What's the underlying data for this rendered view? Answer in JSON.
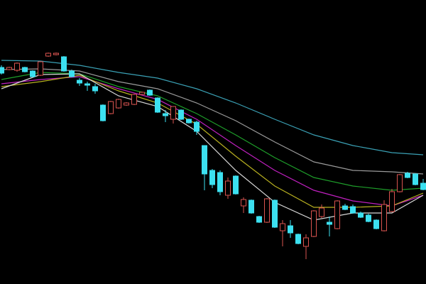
{
  "chart_data": {
    "type": "candlestick",
    "ylim": [
      0,
      100
    ],
    "up_color": "#d9534f",
    "down_color": "#3ce0f0",
    "open": [
      76.25,
      75.5,
      75.25,
      76.25,
      75,
      73.5,
      80.25,
      80.75,
      80,
      75,
      71.75,
      70.5,
      69.5,
      63,
      60,
      62,
      63,
      63.25,
      66.75,
      68.25,
      65.5,
      60,
      58,
      61.25,
      58,
      57,
      48.75,
      40,
      39.25,
      31.25,
      38,
      27.5,
      29.5,
      23.75,
      21.75,
      29.5,
      18.75,
      20.5,
      17.5,
      13.25,
      16.75,
      23.75,
      21.75,
      19.5,
      27.5,
      27.25,
      25,
      24.25,
      22.5,
      18.75,
      25.5,
      32.5,
      39,
      38.75,
      35.5
    ],
    "high": [
      77,
      76.5,
      78,
      76.5,
      75.25,
      78.5,
      81.5,
      81.5,
      80.25,
      75.5,
      72.5,
      71.25,
      70.5,
      63.25,
      64.5,
      65.25,
      64,
      67,
      67.75,
      68.5,
      65.75,
      61.25,
      62.5,
      61.5,
      58.25,
      57.5,
      48.75,
      40.5,
      40,
      37.5,
      38.25,
      30.5,
      29.75,
      24,
      30.25,
      29.75,
      22.5,
      22.5,
      17.75,
      17.5,
      26,
      28,
      23.75,
      29.5,
      28.25,
      28,
      25.5,
      24.75,
      22.75,
      29.5,
      33.5,
      38.75,
      39.5,
      39,
      37
    ],
    "low": [
      73.75,
      75.25,
      74.75,
      74.5,
      72.75,
      73.25,
      80,
      80.5,
      74.75,
      72.75,
      69.75,
      68,
      67,
      57.25,
      59.75,
      61.75,
      62.75,
      63,
      66.5,
      66.25,
      60.25,
      57,
      56.5,
      57.75,
      56.5,
      52.5,
      33,
      33.75,
      31.25,
      30,
      31.5,
      25,
      24.75,
      21.5,
      21.5,
      19.75,
      13.25,
      16.25,
      14,
      8.75,
      16.5,
      23.25,
      16.75,
      19.25,
      26,
      24.75,
      23.25,
      21.75,
      19.25,
      18.5,
      25.25,
      32.25,
      37.25,
      34.75,
      33
    ],
    "close": [
      74.25,
      76.25,
      77.75,
      74.75,
      73,
      78.25,
      81.25,
      81.25,
      75,
      73,
      70.75,
      70,
      68,
      57.5,
      64.25,
      65,
      63.75,
      66.75,
      67.5,
      66.5,
      60.5,
      59.25,
      62.5,
      58,
      56.75,
      53.75,
      38.75,
      35,
      32.5,
      36.25,
      31.75,
      29.75,
      25,
      21.75,
      30,
      20,
      21.25,
      18,
      14.25,
      16.25,
      25.75,
      26.75,
      21,
      29.25,
      26.25,
      25,
      23.5,
      22,
      19.5,
      28,
      32.5,
      38.5,
      37.5,
      35,
      33.25
    ],
    "series": [
      {
        "color": "#3aa0b4",
        "x": [
          0,
          5,
          10,
          15,
          20,
          25,
          30,
          35,
          40,
          45,
          50,
          54
        ],
        "values": [
          78.75,
          78.5,
          77,
          74.5,
          72.5,
          68.75,
          63.75,
          58,
          52.5,
          48.75,
          46.25,
          45.5
        ]
      },
      {
        "color": "#9a9a9a",
        "x": [
          0,
          5,
          10,
          15,
          20,
          25,
          30,
          35,
          40,
          45,
          50,
          54
        ],
        "values": [
          75.5,
          75.75,
          75,
          71.25,
          68.75,
          63.75,
          57.5,
          50,
          43,
          40,
          39.5,
          38.75
        ]
      },
      {
        "color": "#1e9e2a",
        "x": [
          0,
          5,
          10,
          15,
          20,
          25,
          30,
          35,
          40,
          45,
          50,
          54
        ],
        "values": [
          72,
          74.5,
          74,
          69.5,
          66.25,
          60,
          52.5,
          44.5,
          37.5,
          34.5,
          33,
          33.75
        ]
      },
      {
        "color": "#c020c0",
        "x": [
          0,
          5,
          10,
          15,
          20,
          25,
          30,
          35,
          40,
          45,
          50,
          54
        ],
        "values": [
          70.5,
          72,
          73,
          68.75,
          65,
          58,
          48.75,
          40,
          33,
          29.25,
          27.5,
          31.25
        ]
      },
      {
        "color": "#b8b020",
        "x": [
          0,
          5,
          10,
          15,
          20,
          25,
          30,
          35,
          40,
          45,
          50,
          54
        ],
        "values": [
          69.5,
          71.25,
          73.5,
          68,
          63.75,
          56.25,
          45,
          34.5,
          27,
          27,
          27.5,
          32
        ]
      },
      {
        "color": "#d8d8d8",
        "x": [
          0,
          5,
          10,
          15,
          20,
          25,
          30,
          35,
          40,
          45,
          50,
          54
        ],
        "values": [
          68.75,
          73.75,
          74,
          66.25,
          62.5,
          53.75,
          40,
          28.75,
          22.5,
          25,
          25,
          31.25
        ]
      }
    ]
  }
}
